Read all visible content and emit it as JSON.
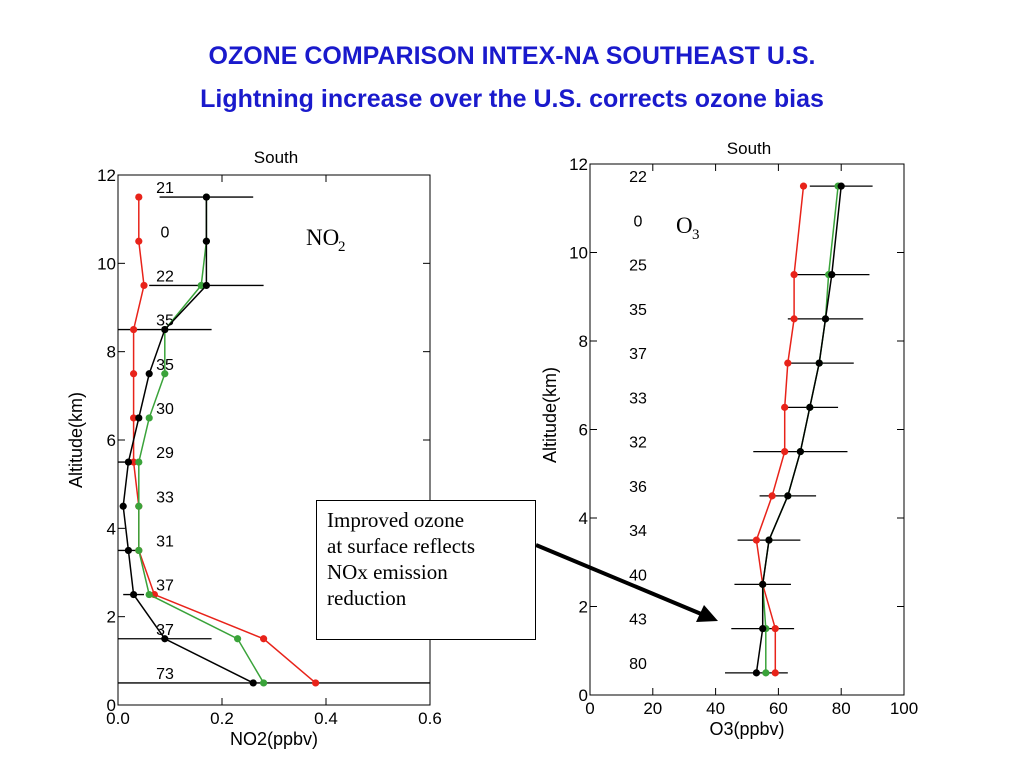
{
  "title_line1": "OZONE COMPARISON INTEX-NA SOUTHEAST U.S.",
  "title_line2": "Lightning increase over the U.S. corrects ozone bias",
  "annotation": {
    "line1": "Improved ozone",
    "line2": "at surface reflects",
    "line3": "NOx emission",
    "line4": "reduction"
  },
  "colors": {
    "title": "#1a1acc",
    "obs": "#000000",
    "model_red": "#e8231a",
    "model_green": "#3aa33a",
    "bg": "#ffffff"
  },
  "chart_data": [
    {
      "type": "line",
      "title": "South",
      "species_label": "NO",
      "species_subscript": "2",
      "xlabel": "NO2(ppbv)",
      "ylabel": "Altitude(km)",
      "xlim": [
        0.0,
        0.6
      ],
      "ylim": [
        0,
        12
      ],
      "xticks": [
        "0.0",
        "0.2",
        "0.4",
        "0.6"
      ],
      "yticks": [
        "0",
        "2",
        "4",
        "6",
        "8",
        "10",
        "12"
      ],
      "altitude": [
        11.5,
        10.5,
        9.5,
        8.5,
        7.5,
        6.5,
        5.5,
        4.5,
        3.5,
        2.5,
        1.5,
        0.5
      ],
      "counts": [
        "21",
        "0",
        "22",
        "35",
        "35",
        "30",
        "29",
        "33",
        "31",
        "37",
        "37",
        "73"
      ],
      "series": [
        {
          "color": "#000000",
          "x": [
            0.17,
            0.17,
            0.17,
            0.09,
            0.06,
            0.04,
            0.02,
            0.01,
            0.02,
            0.03,
            0.09,
            0.26
          ],
          "err": [
            0.09,
            0,
            0.11,
            0.09,
            0,
            0,
            0.02,
            0,
            0.02,
            0.02,
            0.09,
            0.34
          ]
        },
        {
          "color": "#3aa33a",
          "x": [
            0.17,
            0.17,
            0.16,
            0.09,
            0.09,
            0.06,
            0.04,
            0.04,
            0.04,
            0.06,
            0.23,
            0.28
          ]
        },
        {
          "color": "#e8231a",
          "x": [
            0.04,
            0.04,
            0.05,
            0.03,
            0.03,
            0.03,
            0.03,
            0.04,
            0.04,
            0.07,
            0.28,
            0.38
          ]
        }
      ]
    },
    {
      "type": "line",
      "title": "South",
      "species_label": "O",
      "species_subscript": "3",
      "xlabel": "O3(ppbv)",
      "ylabel": "Altitude(km)",
      "xlim": [
        0,
        100
      ],
      "ylim": [
        0,
        12
      ],
      "xticks": [
        "0",
        "20",
        "40",
        "60",
        "80",
        "100"
      ],
      "yticks": [
        "0",
        "2",
        "4",
        "6",
        "8",
        "10",
        "12"
      ],
      "altitude": [
        11.5,
        10.5,
        9.5,
        8.5,
        7.5,
        6.5,
        5.5,
        4.5,
        3.5,
        2.5,
        1.5,
        0.5
      ],
      "counts": [
        "22",
        "0",
        "25",
        "35",
        "37",
        "33",
        "32",
        "36",
        "34",
        "40",
        "43",
        "80"
      ],
      "series": [
        {
          "color": "#000000",
          "x": [
            80,
            null,
            77,
            75,
            73,
            70,
            67,
            63,
            57,
            55,
            55,
            53
          ],
          "err": [
            10,
            0,
            12,
            12,
            11,
            9,
            15,
            9,
            10,
            9,
            10,
            10
          ]
        },
        {
          "color": "#3aa33a",
          "x": [
            79,
            null,
            76,
            75,
            73,
            70,
            67,
            63,
            57,
            55,
            56,
            56
          ]
        },
        {
          "color": "#e8231a",
          "x": [
            68,
            null,
            65,
            65,
            63,
            62,
            62,
            58,
            53,
            55,
            59,
            59
          ]
        }
      ]
    }
  ]
}
